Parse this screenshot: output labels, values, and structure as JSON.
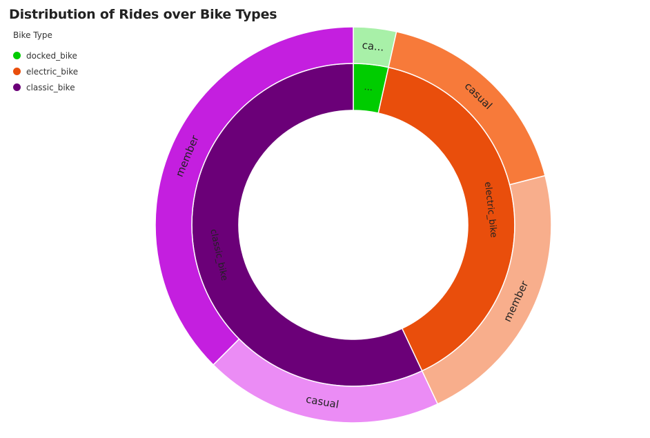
{
  "chart_data": {
    "type": "sunburst",
    "title": "Distribution of Rides over Bike Types",
    "legend": {
      "title": "Bike Type",
      "placement": "top-left",
      "entries": [
        {
          "label": "docked_bike",
          "color": "#00CC00"
        },
        {
          "label": "electric_bike",
          "color": "#E94E0C"
        },
        {
          "label": "classic_bike",
          "color": "#6B0078"
        }
      ]
    },
    "inner_ring": [
      {
        "category": "docked_bike",
        "label": "...",
        "value": 3.5,
        "color": "#00CC00"
      },
      {
        "category": "electric_bike",
        "label": "electric_bike",
        "value": 39.5,
        "color": "#E94E0C"
      },
      {
        "category": "classic_bike",
        "label": "classic_bike",
        "value": 57.0,
        "color": "#6B0078"
      }
    ],
    "outer_ring": [
      {
        "parent": "docked_bike",
        "label": "ca...",
        "value": 3.5,
        "color": "#A8F0A8"
      },
      {
        "parent": "electric_bike",
        "label": "casual",
        "value": 17.5,
        "color": "#F77A3A"
      },
      {
        "parent": "electric_bike",
        "label": "member",
        "value": 22.0,
        "color": "#F8AE8C"
      },
      {
        "parent": "classic_bike",
        "label": "casual",
        "value": 19.5,
        "color": "#EB8CF5"
      },
      {
        "parent": "classic_bike",
        "label": "member",
        "value": 37.5,
        "color": "#C41FDF"
      }
    ]
  }
}
